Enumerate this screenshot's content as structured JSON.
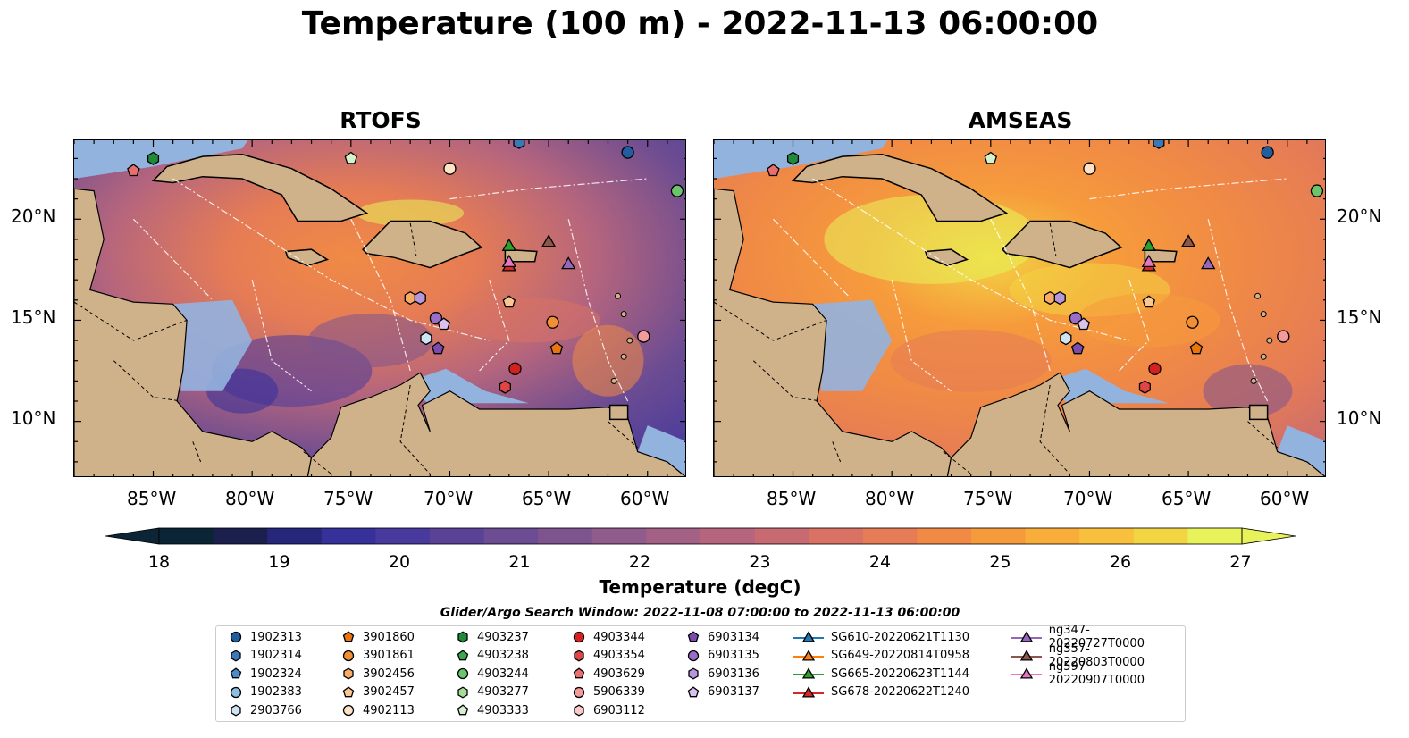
{
  "title": "Temperature (100 m) - 2022-11-13 06:00:00",
  "panels": [
    {
      "name": "RTOFS"
    },
    {
      "name": "AMSEAS"
    }
  ],
  "lon_ticks": [
    "85°W",
    "80°W",
    "75°W",
    "70°W",
    "65°W",
    "60°W"
  ],
  "lat_ticks": [
    "20°N",
    "15°N",
    "10°N"
  ],
  "colorbar": {
    "label": "Temperature (degC)",
    "ticks": [
      "18",
      "19",
      "20",
      "21",
      "22",
      "23",
      "24",
      "25",
      "26",
      "27"
    ],
    "colors": [
      "#0b2537",
      "#1a1f4d",
      "#26277a",
      "#35309a",
      "#473a9c",
      "#5a4296",
      "#6c4c92",
      "#7d548e",
      "#905c8b",
      "#a36185",
      "#b5657d",
      "#c86a72",
      "#d97265",
      "#e67c55",
      "#f08a45",
      "#f69b3c",
      "#f9ad3a",
      "#f8c03c",
      "#f3d442",
      "#e8f25a"
    ]
  },
  "search_window": "Glider/Argo Search Window: 2022-11-08 07:00:00 to 2022-11-13 06:00:00",
  "legend": [
    {
      "label": "1902313",
      "marker": "circle",
      "color": "#1f5f9f"
    },
    {
      "label": "1902314",
      "marker": "hexagon",
      "color": "#3a78b8"
    },
    {
      "label": "1902324",
      "marker": "pentagon",
      "color": "#4a8bc8"
    },
    {
      "label": "1902383",
      "marker": "circle",
      "color": "#8ebde0"
    },
    {
      "label": "2903766",
      "marker": "hexagon",
      "color": "#cfe4f3"
    },
    {
      "label": "3901860",
      "marker": "pentagon",
      "color": "#e8750f"
    },
    {
      "label": "3901861",
      "marker": "circle",
      "color": "#f28f35"
    },
    {
      "label": "3902456",
      "marker": "hexagon",
      "color": "#f7ac66"
    },
    {
      "label": "3902457",
      "marker": "pentagon",
      "color": "#fac793"
    },
    {
      "label": "4902113",
      "marker": "circle",
      "color": "#fde2c6"
    },
    {
      "label": "4903237",
      "marker": "hexagon",
      "color": "#1f8a3a"
    },
    {
      "label": "4903238",
      "marker": "pentagon",
      "color": "#3aa84e"
    },
    {
      "label": "4903244",
      "marker": "circle",
      "color": "#6cc46c"
    },
    {
      "label": "4903277",
      "marker": "hexagon",
      "color": "#a4dc98"
    },
    {
      "label": "4903333",
      "marker": "pentagon",
      "color": "#d6f2cc"
    },
    {
      "label": "4903344",
      "marker": "circle",
      "color": "#d62020"
    },
    {
      "label": "4903354",
      "marker": "hexagon",
      "color": "#e04545"
    },
    {
      "label": "4903629",
      "marker": "pentagon",
      "color": "#eb6e6e"
    },
    {
      "label": "5906339",
      "marker": "circle",
      "color": "#f39a9a"
    },
    {
      "label": "6903112",
      "marker": "hexagon",
      "color": "#fbc9c9"
    },
    {
      "label": "6903134",
      "marker": "pentagon",
      "color": "#7b4bb0"
    },
    {
      "label": "6903135",
      "marker": "circle",
      "color": "#9a6ec8"
    },
    {
      "label": "6903136",
      "marker": "hexagon",
      "color": "#b796dc"
    },
    {
      "label": "6903137",
      "marker": "pentagon",
      "color": "#d8c2ee"
    },
    {
      "label": "SG610-20220621T1130",
      "marker": "triangle",
      "color": "#1f77b4"
    },
    {
      "label": "SG649-20220814T0958",
      "marker": "triangle",
      "color": "#ff7f0e"
    },
    {
      "label": "SG665-20220623T1144",
      "marker": "triangle",
      "color": "#2ca02c"
    },
    {
      "label": "SG678-20220622T1240",
      "marker": "triangle",
      "color": "#d62728"
    },
    {
      "label": "ng347-20220727T0000",
      "marker": "triangle",
      "color": "#9467bd"
    },
    {
      "label": "ng357-20220803T0000",
      "marker": "triangle",
      "color": "#8c564b"
    },
    {
      "label": "ng597-20220907T0000",
      "marker": "triangle",
      "color": "#e377c2"
    }
  ],
  "map_markers": [
    {
      "label": "1902313",
      "lon": -61.0,
      "lat": 23.3
    },
    {
      "label": "1902314",
      "lon": -66.5,
      "lat": 23.8
    },
    {
      "label": "4903237",
      "lon": -85.0,
      "lat": 23.0
    },
    {
      "label": "4903629",
      "lon": -86.0,
      "lat": 22.4
    },
    {
      "label": "4903333",
      "lon": -75.0,
      "lat": 23.0
    },
    {
      "label": "4902113",
      "lon": -70.0,
      "lat": 22.5
    },
    {
      "label": "4903244",
      "lon": -58.5,
      "lat": 21.4
    },
    {
      "label": "SG665-20220623T1144",
      "lon": -67.0,
      "lat": 18.7
    },
    {
      "label": "ng357-20220803T0000",
      "lon": -65.0,
      "lat": 18.9
    },
    {
      "label": "ng347-20220727T0000",
      "lon": -64.0,
      "lat": 17.8
    },
    {
      "label": "SG678-20220622T1240",
      "lon": -67.0,
      "lat": 17.7
    },
    {
      "label": "ng597-20220907T0000",
      "lon": -67.0,
      "lat": 17.9
    },
    {
      "label": "3902456",
      "lon": -72.0,
      "lat": 16.1
    },
    {
      "label": "3902457",
      "lon": -67.0,
      "lat": 15.9
    },
    {
      "label": "6903136",
      "lon": -71.5,
      "lat": 16.1
    },
    {
      "label": "6903135",
      "lon": -70.7,
      "lat": 15.1
    },
    {
      "label": "6903137",
      "lon": -70.3,
      "lat": 14.8
    },
    {
      "label": "3901861",
      "lon": -64.8,
      "lat": 14.9
    },
    {
      "label": "5906339",
      "lon": -60.2,
      "lat": 14.2
    },
    {
      "label": "2903766",
      "lon": -71.2,
      "lat": 14.1
    },
    {
      "label": "6903134",
      "lon": -70.6,
      "lat": 13.6
    },
    {
      "label": "3901860",
      "lon": -64.6,
      "lat": 13.6
    },
    {
      "label": "4903344",
      "lon": -66.7,
      "lat": 12.6
    },
    {
      "label": "4903354",
      "lon": -67.2,
      "lat": 11.7
    }
  ]
}
